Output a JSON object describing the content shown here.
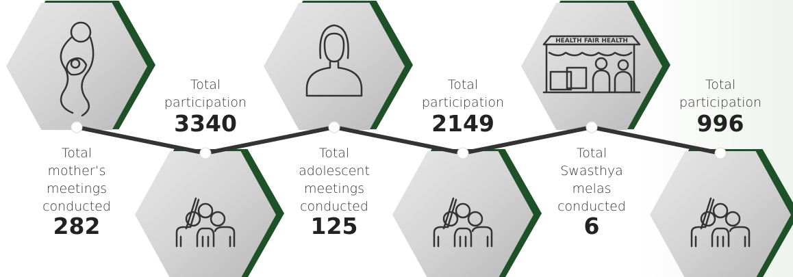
{
  "steps": [
    {
      "lines": [
        "Total",
        "mother’s",
        "meetings",
        "conducted"
      ],
      "value": 282
    },
    {
      "lines": [
        "Total",
        "participation"
      ],
      "value": 3340
    },
    {
      "lines": [
        "Total",
        "adolescent",
        "meetings",
        "conducted"
      ],
      "value": 125
    },
    {
      "lines": [
        "Total",
        "participation"
      ],
      "value": 2149
    },
    {
      "lines": [
        "Total",
        "Swasthya",
        "melas",
        "conducted"
      ],
      "value": 6
    },
    {
      "lines": [
        "Total",
        "participation"
      ],
      "value": 996
    }
  ],
  "banner": "HEALTH FAIR HEALTH"
}
